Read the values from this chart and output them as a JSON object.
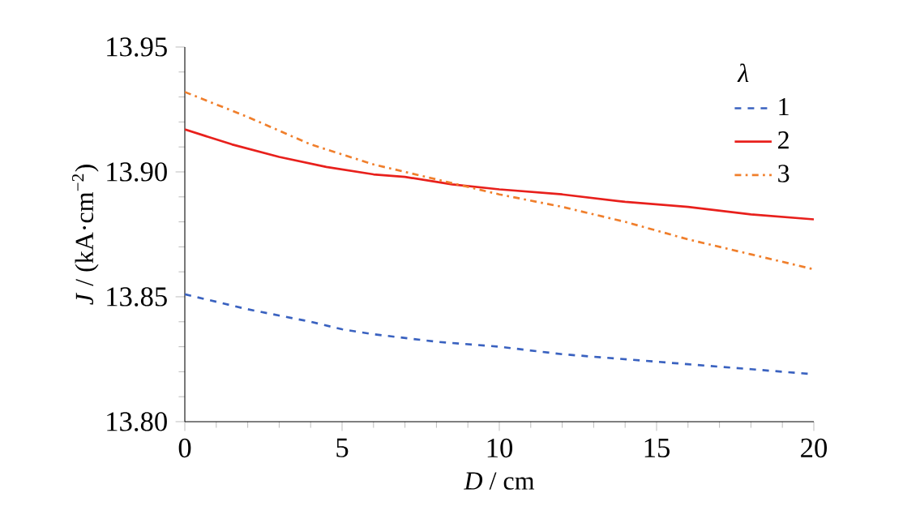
{
  "chart_data": {
    "type": "line",
    "xlabel": "*D* / cm",
    "ylabel": "*J* / (kA·cm$^{−2}$)",
    "legend_title": "λ",
    "legend": "top right",
    "xlim": [
      0,
      20
    ],
    "xticks": [
      0,
      5,
      10,
      15,
      20
    ],
    "ylim": [
      13.8,
      13.95
    ],
    "yticks": [
      {
        "value": 13.8,
        "label": "13.80"
      },
      {
        "value": 13.85,
        "label": "13.85"
      },
      {
        "value": 13.9,
        "label": "13.90"
      },
      {
        "value": 13.95,
        "label": "13.95"
      }
    ],
    "series": [
      {
        "name": "1",
        "color": "#3a62c0",
        "line_style": "dashed",
        "x": [
          0,
          2,
          4,
          5,
          6,
          8,
          10,
          12,
          14,
          16,
          18,
          20
        ],
        "values": [
          13.851,
          13.845,
          13.84,
          13.837,
          13.835,
          13.832,
          13.83,
          13.827,
          13.825,
          13.823,
          13.821,
          13.819
        ]
      },
      {
        "name": "2",
        "color": "#e8201c",
        "line_style": "solid",
        "x": [
          0,
          1.5,
          3,
          4.5,
          6,
          7,
          8.5,
          10,
          12,
          14,
          16,
          18,
          20
        ],
        "values": [
          13.917,
          13.911,
          13.906,
          13.902,
          13.899,
          13.898,
          13.895,
          13.893,
          13.891,
          13.888,
          13.886,
          13.883,
          13.881
        ]
      },
      {
        "name": "3",
        "color": "#f07f2c",
        "line_style": "dashdotted",
        "x": [
          0,
          2,
          4,
          6,
          8,
          10,
          12,
          14,
          16,
          18,
          20
        ],
        "values": [
          13.932,
          13.922,
          13.911,
          13.903,
          13.897,
          13.891,
          13.886,
          13.88,
          13.873,
          13.867,
          13.861
        ]
      }
    ]
  }
}
